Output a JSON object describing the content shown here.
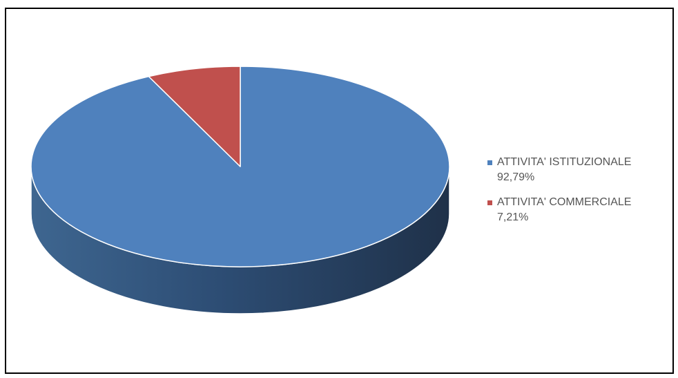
{
  "chart_data": {
    "type": "pie",
    "title": "",
    "labels": [
      "ATTIVITA' ISTITUZIONALE",
      "ATTIVITA' COMMERCIALE"
    ],
    "values": [
      92.79,
      7.21
    ],
    "value_labels": [
      "92,79%",
      "7,21%"
    ],
    "colors": [
      "#4f81bd",
      "#c0504d"
    ],
    "style": "3d",
    "legend": "right"
  },
  "legend": {
    "items": [
      {
        "label": "ATTIVITA' ISTITUZIONALE",
        "value": "92,79%",
        "color": "#4f81bd"
      },
      {
        "label": "ATTIVITA' COMMERCIALE",
        "value": "7,21%",
        "color": "#c0504d"
      }
    ]
  }
}
